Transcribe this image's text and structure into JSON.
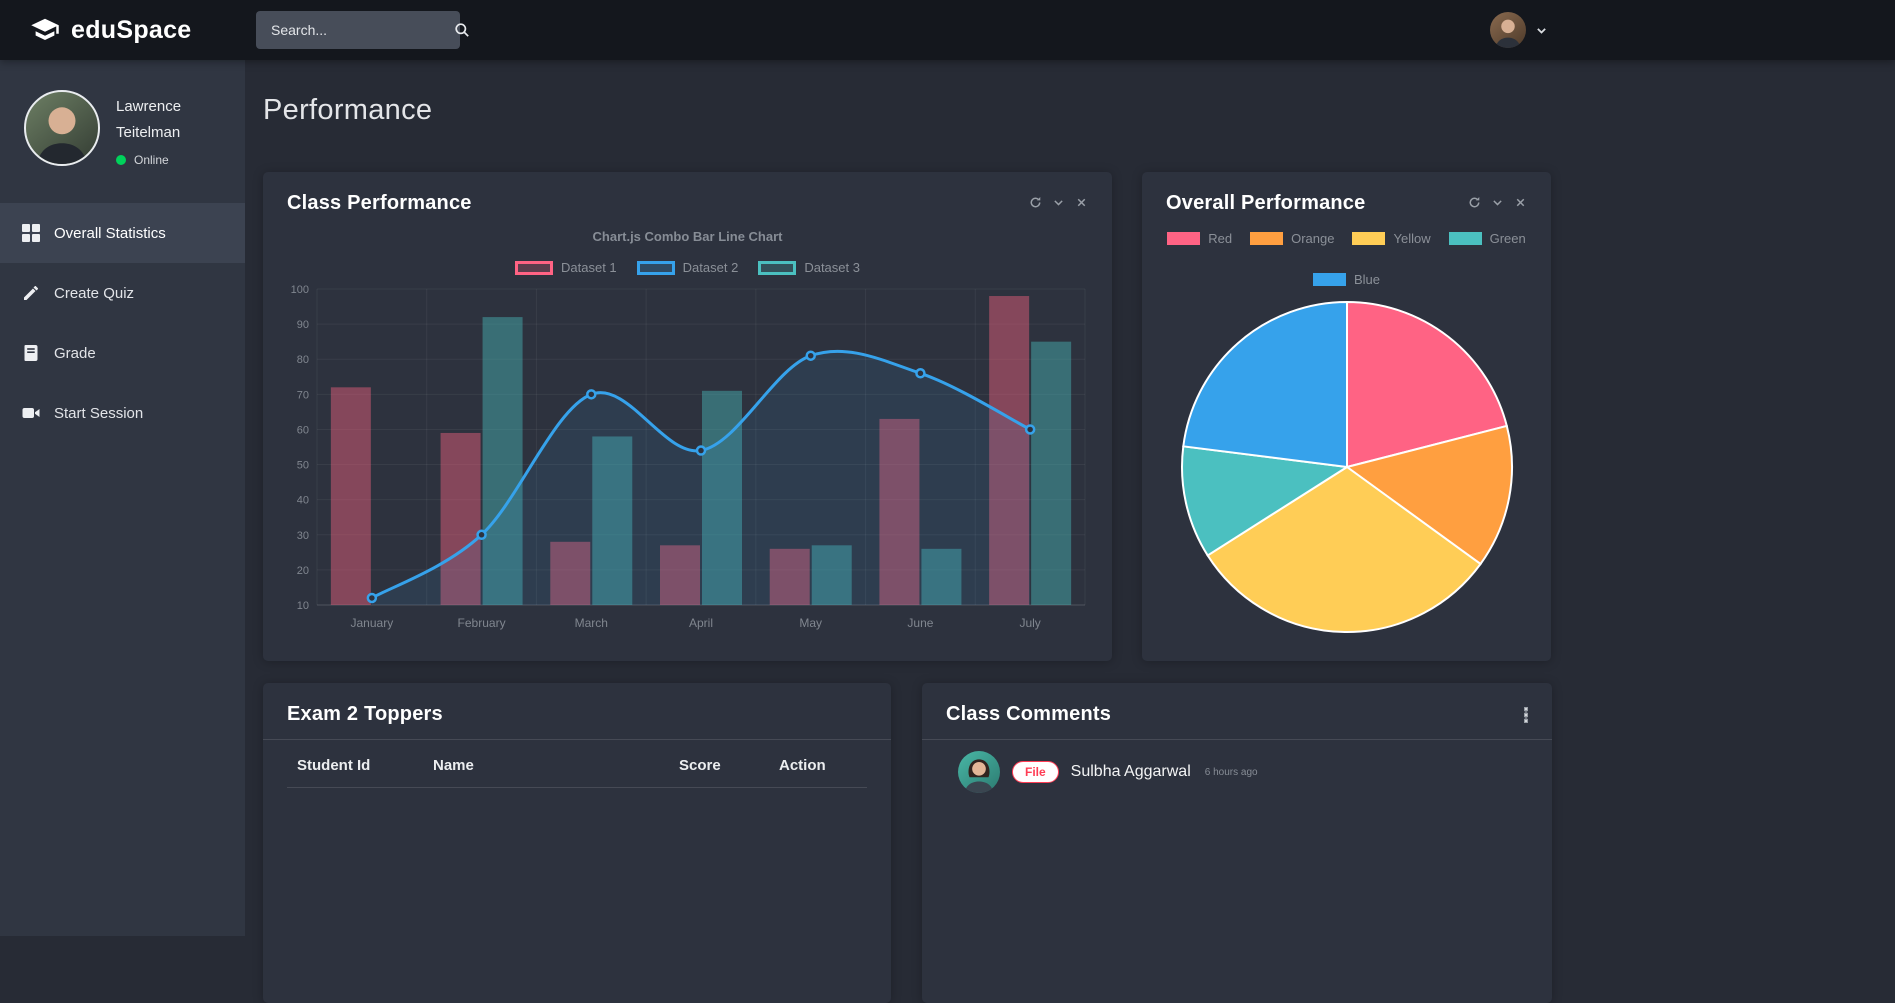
{
  "navbar": {
    "brand": "eduSpace",
    "search_placeholder": "Search..."
  },
  "sidebar": {
    "user": {
      "first_name": "Lawrence",
      "last_name": "Teitelman",
      "status": "Online"
    },
    "items": [
      {
        "label": "Overall Statistics",
        "icon": "grid-icon",
        "active": true
      },
      {
        "label": "Create Quiz",
        "icon": "pen-icon",
        "active": false
      },
      {
        "label": "Grade",
        "icon": "book-icon",
        "active": false
      },
      {
        "label": "Start Session",
        "icon": "video-icon",
        "active": false
      }
    ]
  },
  "page": {
    "title": "Performance"
  },
  "cards": {
    "class_performance": {
      "title": "Class Performance"
    },
    "overall_performance": {
      "title": "Overall Performance"
    },
    "exam_toppers": {
      "title": "Exam 2 Toppers",
      "columns": [
        "Student Id",
        "Name",
        "Score",
        "Action"
      ]
    },
    "class_comments": {
      "title": "Class Comments",
      "comments": [
        {
          "badge": "File",
          "name": "Sulbha Aggarwal",
          "time": "6 hours ago"
        }
      ]
    }
  },
  "chart_data": [
    {
      "type": "bar",
      "title": "Chart.js Combo Bar Line Chart",
      "categories": [
        "January",
        "February",
        "March",
        "April",
        "May",
        "June",
        "July"
      ],
      "series": [
        {
          "name": "Dataset 1",
          "kind": "bar",
          "color": "#FF6384",
          "values": [
            72,
            59,
            28,
            27,
            26,
            63,
            98
          ]
        },
        {
          "name": "Dataset 2",
          "kind": "line",
          "color": "#36A2EB",
          "values": [
            12,
            30,
            70,
            54,
            81,
            76,
            60
          ]
        },
        {
          "name": "Dataset 3",
          "kind": "bar",
          "color": "#4BC0C0",
          "values": [
            null,
            92,
            58,
            71,
            27,
            26,
            85
          ]
        }
      ],
      "xlabel": "",
      "ylabel": "",
      "ylim": [
        10,
        100
      ],
      "yticks": [
        10,
        20,
        30,
        40,
        50,
        60,
        70,
        80,
        90,
        100
      ],
      "grid": true,
      "legend_position": "top"
    },
    {
      "type": "pie",
      "title": "",
      "labels": [
        "Red",
        "Orange",
        "Yellow",
        "Green",
        "Blue"
      ],
      "values": [
        21,
        14,
        31,
        11,
        23
      ],
      "colors": [
        "#FF6384",
        "#FF9F40",
        "#FFCD56",
        "#4BC0C0",
        "#36A2EB"
      ],
      "legend_position": "top"
    }
  ],
  "colors": {
    "status_online": "#00d25b",
    "badge_red": "#ff3d55",
    "card_bg": "#2d323e",
    "sidebar_bg": "#303642",
    "navbar_bg": "#14171d"
  }
}
